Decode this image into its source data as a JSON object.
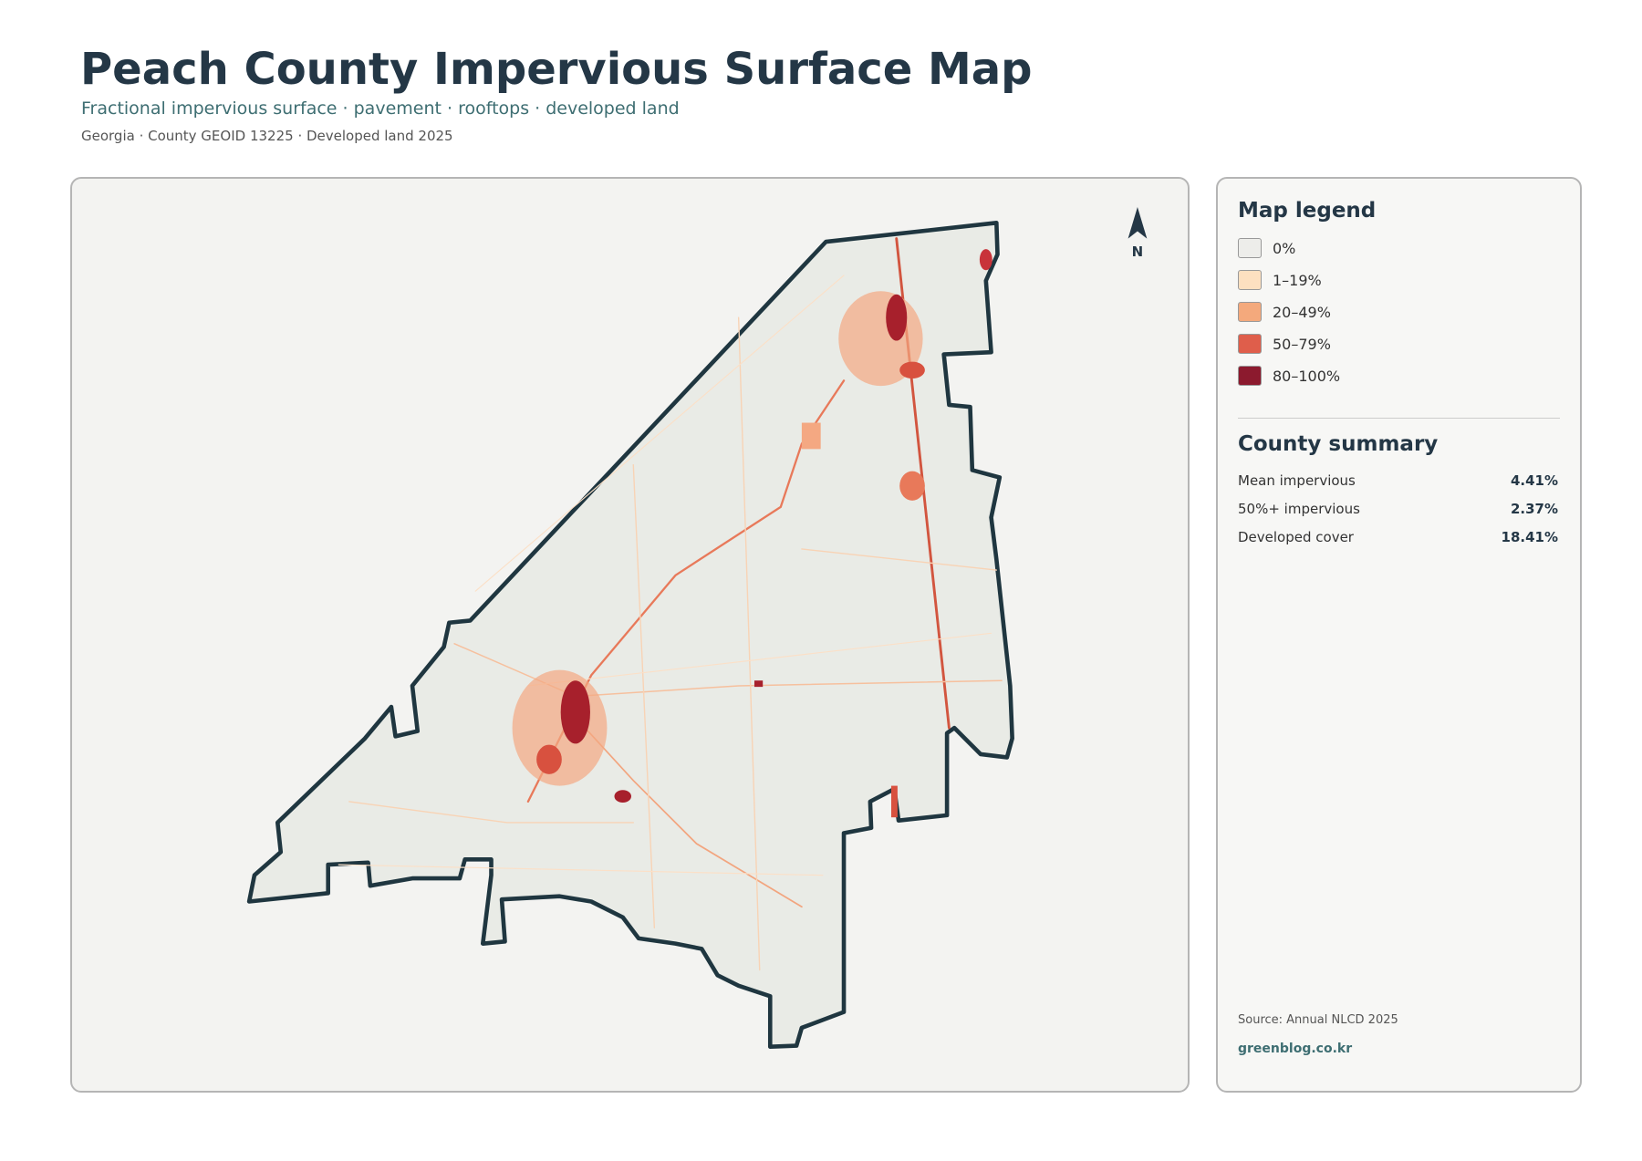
{
  "header": {
    "title": "Peach County Impervious Surface Map",
    "subtitle": "Fractional impervious surface · pavement · rooftops · developed land",
    "meta": "Georgia · County GEOID 13225 · Developed land 2025"
  },
  "map": {
    "north_label": "N"
  },
  "legend": {
    "title": "Map legend",
    "items": [
      {
        "label": "0%",
        "color": "#ededea"
      },
      {
        "label": "1–19%",
        "color": "#fde0c0"
      },
      {
        "label": "20–49%",
        "color": "#f4a97c"
      },
      {
        "label": "50–79%",
        "color": "#df5e4b"
      },
      {
        "label": "80–100%",
        "color": "#8c1a2e"
      }
    ]
  },
  "summary": {
    "title": "County summary",
    "items": [
      {
        "label": "Mean impervious",
        "value": "4.41%"
      },
      {
        "label": "50%+ impervious",
        "value": "2.37%"
      },
      {
        "label": "Developed cover",
        "value": "18.41%"
      }
    ]
  },
  "footer": {
    "source": "Source: Annual NLCD 2025",
    "site": "greenblog.co.kr"
  }
}
